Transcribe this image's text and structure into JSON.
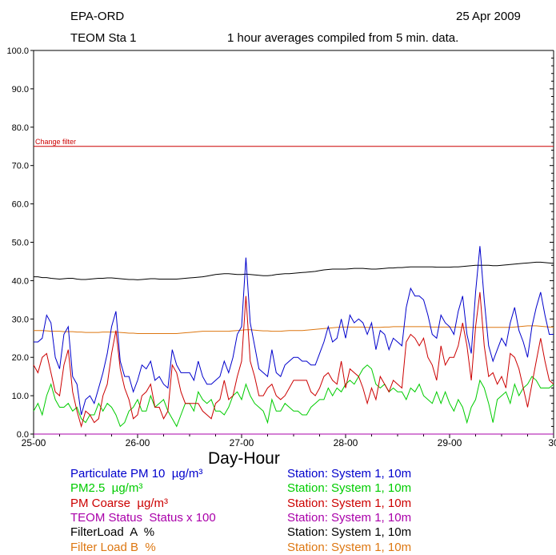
{
  "header": {
    "org": "EPA-ORD",
    "date": "25 Apr 2009",
    "station": "TEOM Sta 1",
    "description": "1 hour averages compiled from 5 min. data."
  },
  "annotation": "Change filter",
  "legend": [
    {
      "name": "Particulate PM 10  µg/m³",
      "station": "Station: System 1, 10m",
      "color": "#0000cc"
    },
    {
      "name": "PM2.5  µg/m³",
      "station": "Station: System 1, 10m",
      "color": "#00cc00"
    },
    {
      "name": "PM Coarse  µg/m³",
      "station": "Station: System 1, 10m",
      "color": "#cc0000"
    },
    {
      "name": "TEOM Status  Status x 100",
      "station": "Station: System 1, 10m",
      "color": "#aa00aa"
    },
    {
      "name": "FilterLoad  A  %",
      "station": "Station: System 1, 10m",
      "color": "#000000"
    },
    {
      "name": "Filter Load B  %",
      "station": "Station: System 1, 10m",
      "color": "#dd7711"
    }
  ],
  "chart_data": {
    "type": "line",
    "xlabel": "Day-Hour",
    "ylabel": "",
    "ylim": [
      0,
      100
    ],
    "xlim": [
      0,
      120
    ],
    "yticks": [
      "0.0",
      "10.0",
      "20.0",
      "30.0",
      "40.0",
      "50.0",
      "60.0",
      "70.0",
      "80.0",
      "90.0",
      "100.0"
    ],
    "xticks": [
      {
        "label": "25-00",
        "x": 0
      },
      {
        "label": "26-00",
        "x": 24
      },
      {
        "label": "27-00",
        "x": 48
      },
      {
        "label": "28-00",
        "x": 72
      },
      {
        "label": "29-00",
        "x": 96
      },
      {
        "label": "30",
        "x": 120
      }
    ],
    "threshold": {
      "label": "Change filter",
      "y": 75
    },
    "series": [
      {
        "name": "Particulate PM 10  µg/m³",
        "color": "#0000cc",
        "x": [
          0,
          1,
          2,
          3,
          4,
          5,
          6,
          7,
          8,
          9,
          10,
          11,
          12,
          13,
          14,
          15,
          16,
          17,
          18,
          19,
          20,
          21,
          22,
          23,
          24,
          25,
          26,
          27,
          28,
          29,
          30,
          31,
          32,
          33,
          34,
          35,
          36,
          37,
          38,
          39,
          40,
          41,
          42,
          43,
          44,
          45,
          46,
          47,
          48,
          49,
          50,
          51,
          52,
          53,
          54,
          55,
          56,
          57,
          58,
          59,
          60,
          61,
          62,
          63,
          64,
          65,
          66,
          67,
          68,
          69,
          70,
          71,
          72,
          73,
          74,
          75,
          76,
          77,
          78,
          79,
          80,
          81,
          82,
          83,
          84,
          85,
          86,
          87,
          88,
          89,
          90,
          91,
          92,
          93,
          94,
          95,
          96,
          97,
          98,
          99,
          100,
          101,
          102,
          103,
          104,
          105,
          106,
          107,
          108,
          109,
          110,
          111,
          112,
          113,
          114,
          115,
          116,
          117,
          118,
          119,
          120
        ],
        "values": [
          24,
          24,
          25,
          31,
          29,
          20,
          17,
          26,
          28,
          15,
          13,
          5,
          9,
          10,
          8,
          12,
          16,
          21,
          28,
          32,
          19,
          15,
          15,
          11,
          14,
          18,
          17,
          19,
          14,
          15,
          13,
          12,
          22,
          18,
          16,
          16,
          16,
          14,
          19,
          15,
          13,
          13,
          14,
          15,
          19,
          16,
          20,
          26,
          28,
          46,
          29,
          23,
          17,
          16,
          15,
          22,
          16,
          15,
          18,
          19,
          20,
          20,
          19,
          19,
          18,
          18,
          21,
          24,
          28,
          24,
          25,
          30,
          25,
          31,
          29,
          30,
          29,
          26,
          29,
          22,
          27,
          26,
          22,
          25,
          24,
          23,
          33,
          38,
          36,
          36,
          35,
          31,
          26,
          25,
          31,
          29,
          28,
          26,
          32,
          36,
          26,
          21,
          37,
          49,
          35,
          23,
          19,
          22,
          25,
          23,
          29,
          33,
          27,
          24,
          20,
          28,
          33,
          37,
          31,
          26,
          26
        ],
        "xs": [
          0,
          1,
          2,
          3,
          4,
          5,
          6,
          7,
          8,
          9,
          10,
          11,
          12,
          13,
          14,
          15,
          16,
          17,
          18,
          19,
          20,
          21,
          22,
          23,
          24,
          25,
          26,
          27,
          28,
          29,
          30,
          31,
          32,
          33,
          34,
          35,
          36,
          37,
          38,
          39,
          40,
          41,
          42,
          43,
          44,
          45,
          46,
          47,
          48,
          49,
          50,
          51,
          52,
          53,
          54,
          55,
          56,
          57,
          58,
          59,
          60,
          61,
          62,
          63,
          64,
          65,
          66,
          67,
          68,
          69,
          70,
          71,
          72,
          73,
          74,
          75,
          76,
          77,
          78,
          79,
          80,
          81,
          82,
          83,
          84,
          85,
          86,
          87,
          88,
          89,
          90,
          91,
          92,
          93,
          94,
          95,
          96,
          97,
          98,
          99,
          100,
          101,
          102,
          103,
          104,
          105,
          106,
          107,
          108,
          109,
          110,
          111,
          112,
          113,
          114,
          115,
          116,
          117,
          118,
          119,
          120
        ],
        "ys": [
          24,
          24,
          25,
          31,
          29,
          20,
          17,
          26,
          28,
          15,
          13,
          5,
          9,
          10,
          8,
          12,
          16,
          21,
          28,
          32,
          19,
          15,
          15,
          11,
          14,
          18,
          17,
          19,
          14,
          15,
          13,
          12,
          22,
          18,
          16,
          16,
          16,
          14,
          19,
          15,
          13,
          13,
          14,
          15,
          19,
          16,
          20,
          26,
          28,
          46,
          29,
          23,
          17,
          16,
          15,
          22,
          16,
          15,
          18,
          19,
          20,
          20,
          19,
          19,
          18,
          18,
          21,
          24,
          28,
          24,
          25,
          30,
          25,
          31,
          29,
          30,
          29,
          26,
          29,
          22,
          27,
          26,
          22,
          25,
          24,
          23,
          33,
          38,
          36,
          36,
          35,
          31,
          26,
          25,
          31,
          29,
          28,
          26,
          32,
          36,
          26,
          21,
          37,
          49,
          35,
          23,
          19,
          22,
          25,
          23,
          29,
          33,
          27,
          24,
          20,
          28,
          33,
          37,
          31,
          26,
          26
        ]
      },
      {
        "name": "PM2.5  µg/m³",
        "color": "#00cc00",
        "values": [
          6,
          8,
          5,
          10,
          13,
          9,
          7,
          7,
          8,
          6,
          7,
          4,
          3,
          5,
          5,
          8,
          6,
          8,
          7,
          5,
          2,
          3,
          6,
          7,
          9,
          6,
          6,
          10,
          7,
          8,
          9,
          6,
          4,
          2,
          5,
          8,
          8,
          6,
          11,
          9,
          8,
          9,
          6,
          6,
          5,
          7,
          10,
          11,
          9,
          13,
          10,
          8,
          7,
          6,
          3,
          9,
          6,
          6,
          8,
          7,
          6,
          6,
          5,
          5,
          7,
          8,
          9,
          9,
          12,
          10,
          12,
          11,
          13,
          14,
          13,
          15,
          17,
          18,
          17,
          13,
          12,
          13,
          11,
          12,
          11,
          11,
          9,
          12,
          11,
          13,
          10,
          9,
          8,
          11,
          8,
          11,
          8,
          6,
          9,
          7,
          3,
          7,
          9,
          14,
          12,
          8,
          3,
          9,
          10,
          11,
          8,
          13,
          10,
          12,
          13,
          15,
          14,
          12,
          12,
          12,
          13
        ]
      },
      {
        "name": "PM Coarse  µg/m³",
        "color": "#cc0000",
        "values": [
          18,
          16,
          20,
          21,
          16,
          11,
          10,
          18,
          22,
          11,
          6,
          2,
          6,
          5,
          3,
          4,
          10,
          13,
          21,
          27,
          17,
          12,
          9,
          4,
          5,
          10,
          11,
          13,
          7,
          7,
          4,
          6,
          18,
          16,
          11,
          8,
          8,
          8,
          8,
          6,
          5,
          4,
          8,
          9,
          14,
          9,
          10,
          15,
          19,
          36,
          19,
          15,
          10,
          10,
          12,
          13,
          10,
          9,
          10,
          12,
          14,
          14,
          14,
          14,
          11,
          10,
          12,
          15,
          16,
          14,
          13,
          19,
          12,
          17,
          16,
          15,
          12,
          8,
          12,
          9,
          15,
          13,
          11,
          14,
          13,
          12,
          24,
          26,
          25,
          23,
          25,
          20,
          18,
          14,
          23,
          18,
          20,
          20,
          23,
          29,
          23,
          14,
          28,
          37,
          23,
          15,
          16,
          13,
          15,
          12,
          21,
          20,
          17,
          12,
          7,
          13,
          19,
          25,
          19,
          14,
          13
        ],
        "values_overlay": []
      },
      {
        "name": "TEOM Status  Status x 100",
        "color": "#aa00aa",
        "values": [
          0,
          0,
          0,
          0,
          0,
          0,
          0,
          0,
          0,
          0,
          0,
          0,
          0,
          0,
          0,
          0,
          0,
          0,
          0,
          0,
          0,
          0,
          0,
          0,
          0,
          0,
          0,
          0,
          0,
          0,
          0,
          0,
          0,
          0,
          0,
          0,
          0,
          0,
          0,
          0,
          0,
          0,
          0,
          0,
          0,
          0,
          0,
          0,
          0,
          0,
          0,
          0,
          0,
          0,
          0,
          0,
          0,
          0,
          0,
          0,
          0,
          0,
          0,
          0,
          0,
          0,
          0,
          0,
          0,
          0,
          0,
          0,
          0,
          0,
          0,
          0,
          0,
          0,
          0,
          0,
          0,
          0,
          0,
          0,
          0,
          0,
          0,
          0,
          0,
          0,
          0,
          0,
          0,
          0,
          0,
          0,
          0,
          0,
          0,
          0,
          0,
          0,
          0,
          0,
          0,
          0,
          0,
          0,
          0,
          0,
          0,
          0,
          0,
          0,
          0,
          0,
          0,
          0,
          0,
          0,
          0
        ]
      },
      {
        "name": "FilterLoad  A  %",
        "color": "#000000",
        "values": [
          41,
          41,
          40.8,
          40.8,
          40.6,
          40.5,
          40.4,
          40.5,
          40.6,
          40.6,
          40.4,
          40.3,
          40.3,
          40.4,
          40.5,
          40.6,
          40.6,
          40.7,
          40.7,
          40.6,
          40.5,
          40.4,
          40.3,
          40.3,
          40.2,
          40.3,
          40.4,
          40.5,
          40.5,
          40.4,
          40.4,
          40.4,
          40.4,
          40.4,
          40.5,
          40.6,
          40.7,
          40.8,
          40.9,
          41,
          41.2,
          41.4,
          41.6,
          41.7,
          41.8,
          41.8,
          41.7,
          41.6,
          41.6,
          41.7,
          41.6,
          41.5,
          41.4,
          41.3,
          41.3,
          41.4,
          41.6,
          41.7,
          41.8,
          41.8,
          41.9,
          42,
          42.1,
          42.2,
          42.3,
          42.4,
          42.6,
          42.8,
          42.9,
          43,
          43,
          43,
          43,
          43.1,
          43.2,
          43.2,
          43.2,
          43.1,
          43,
          43,
          43.1,
          43.2,
          43.3,
          43.3,
          43.4,
          43.4,
          43.5,
          43.6,
          43.6,
          43.6,
          43.6,
          43.6,
          43.6,
          43.5,
          43.5,
          43.5,
          43.5,
          43.6,
          43.6,
          43.7,
          43.8,
          43.9,
          44,
          44,
          44,
          44,
          43.9,
          43.9,
          44,
          44.1,
          44.2,
          44.3,
          44.4,
          44.5,
          44.6,
          44.7,
          44.8,
          44.8,
          44.7,
          44.6,
          44.5
        ]
      },
      {
        "name": "Filter Load B  %",
        "color": "#dd7711",
        "values": [
          27,
          27,
          27,
          26.9,
          26.8,
          26.8,
          26.8,
          26.7,
          26.7,
          26.7,
          26.6,
          26.6,
          26.5,
          26.5,
          26.5,
          26.5,
          26.6,
          26.6,
          26.6,
          26.6,
          26.5,
          26.4,
          26.3,
          26.3,
          26.2,
          26.2,
          26.2,
          26.2,
          26.2,
          26.2,
          26.2,
          26.2,
          26.2,
          26.2,
          26.3,
          26.4,
          26.5,
          26.6,
          26.7,
          26.8,
          26.8,
          26.8,
          26.8,
          26.8,
          26.8,
          26.8,
          26.9,
          27,
          27.1,
          27.2,
          27.2,
          27.1,
          27,
          26.9,
          26.9,
          26.8,
          26.8,
          26.8,
          26.9,
          27,
          27,
          27,
          27,
          27.1,
          27.2,
          27.3,
          27.4,
          27.5,
          27.6,
          27.7,
          27.8,
          27.9,
          27.9,
          27.9,
          27.9,
          27.9,
          27.9,
          27.8,
          27.8,
          27.8,
          27.8,
          27.9,
          27.9,
          28,
          28,
          28,
          28,
          28,
          28,
          28,
          28,
          28,
          27.9,
          27.9,
          27.9,
          27.9,
          27.9,
          27.9,
          27.9,
          27.8,
          27.8,
          27.8,
          27.8,
          27.8,
          27.8,
          27.8,
          27.8,
          27.8,
          27.8,
          27.8,
          27.8,
          27.9,
          28,
          28.1,
          28.2,
          28.2,
          28.2,
          28.1,
          28,
          27.9,
          27.9
        ]
      }
    ]
  }
}
